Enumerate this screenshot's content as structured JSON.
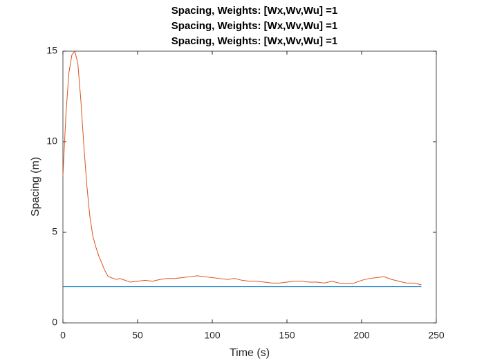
{
  "chart_data": {
    "type": "line",
    "title": [
      "Spacing, Weights: [Wx,Wv,Wu] =1",
      "Spacing, Weights: [Wx,Wv,Wu] =1",
      "Spacing, Weights: [Wx,Wv,Wu] =1"
    ],
    "xlabel": "Time (s)",
    "ylabel": "Spacing (m)",
    "x": [
      0,
      2,
      4,
      6,
      8,
      10,
      12,
      14,
      16,
      18,
      20,
      22,
      24,
      26,
      28,
      30,
      32,
      34,
      36,
      38,
      40,
      45,
      50,
      55,
      60,
      65,
      70,
      75,
      80,
      85,
      90,
      95,
      100,
      105,
      110,
      115,
      120,
      125,
      130,
      135,
      140,
      145,
      150,
      155,
      160,
      165,
      170,
      175,
      180,
      185,
      190,
      195,
      200,
      205,
      210,
      215,
      220,
      225,
      230,
      235,
      240
    ],
    "series": [
      {
        "color": "#0072BD",
        "values": [
          2,
          2,
          2,
          2,
          2,
          2,
          2,
          2,
          2,
          2,
          2,
          2,
          2,
          2,
          2,
          2,
          2,
          2,
          2,
          2,
          2,
          2,
          2,
          2,
          2,
          2,
          2,
          2,
          2,
          2,
          2,
          2,
          2,
          2,
          2,
          2,
          2,
          2,
          2,
          2,
          2,
          2,
          2,
          2,
          2,
          2,
          2,
          2,
          2,
          2,
          2,
          2,
          2,
          2,
          2,
          2,
          2,
          2,
          2,
          2,
          2
        ]
      },
      {
        "color": "#D95319",
        "values": [
          8.1,
          11.5,
          13.8,
          14.8,
          15.0,
          14.3,
          12.3,
          9.8,
          7.6,
          5.9,
          4.8,
          4.2,
          3.7,
          3.3,
          2.9,
          2.6,
          2.5,
          2.45,
          2.4,
          2.45,
          2.4,
          2.25,
          2.3,
          2.35,
          2.3,
          2.4,
          2.45,
          2.45,
          2.5,
          2.55,
          2.6,
          2.55,
          2.5,
          2.45,
          2.4,
          2.45,
          2.35,
          2.3,
          2.3,
          2.25,
          2.2,
          2.2,
          2.25,
          2.3,
          2.3,
          2.25,
          2.25,
          2.2,
          2.3,
          2.2,
          2.15,
          2.2,
          2.35,
          2.45,
          2.5,
          2.55,
          2.4,
          2.3,
          2.2,
          2.2,
          2.1
        ]
      }
    ],
    "xlim": [
      0,
      250
    ],
    "xticks": [
      0,
      50,
      100,
      150,
      200,
      250
    ],
    "ylim": [
      0,
      15
    ],
    "yticks": [
      0,
      5,
      10,
      15
    ]
  }
}
